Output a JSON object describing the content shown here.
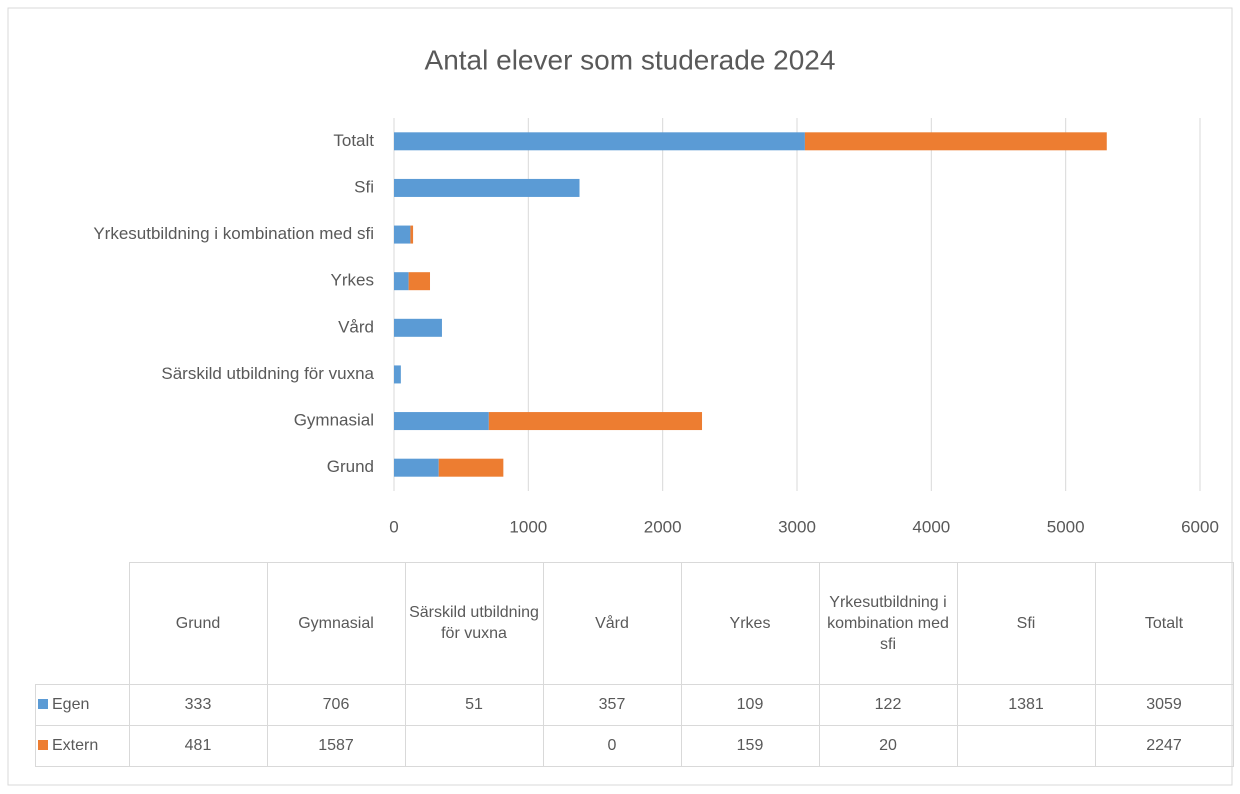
{
  "chart_data": {
    "type": "bar",
    "orientation": "horizontal",
    "stacked": true,
    "title": "Antal elever som studerade 2024",
    "categories": [
      "Grund",
      "Gymnasial",
      "Särskild utbildning för vuxna",
      "Vård",
      "Yrkes",
      "Yrkesutbildning i kombination med sfi",
      "Sfi",
      "Totalt"
    ],
    "series": [
      {
        "name": "Egen",
        "color": "#5b9bd5",
        "values": [
          333,
          706,
          51,
          357,
          109,
          122,
          1381,
          3059
        ]
      },
      {
        "name": "Extern",
        "color": "#ed7d31",
        "values": [
          481,
          1587,
          null,
          0,
          159,
          20,
          null,
          2247
        ]
      }
    ],
    "xlim": [
      0,
      6000
    ],
    "xticks": [
      0,
      1000,
      2000,
      3000,
      4000,
      5000,
      6000
    ],
    "grid": true,
    "data_table": true
  }
}
